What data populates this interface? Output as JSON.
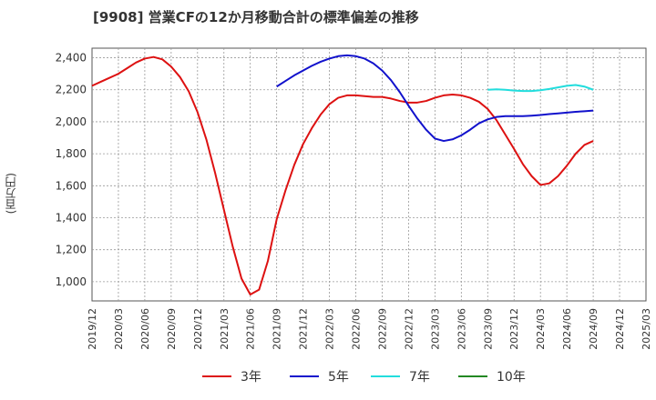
{
  "chart_data": {
    "type": "line",
    "title": "[9908]  営業CFの12か月移動合計の標準偏差の推移",
    "ylabel": "(百万円)",
    "xlabel": "",
    "ylim": [
      880,
      2460
    ],
    "y_ticks": [
      1000,
      1200,
      1400,
      1600,
      1800,
      2000,
      2200,
      2400
    ],
    "y_tick_labels": [
      "1,000",
      "1,200",
      "1,400",
      "1,600",
      "1,800",
      "2,000",
      "2,200",
      "2,400"
    ],
    "x_ticks": [
      "2019-12",
      "2020-03",
      "2020-06",
      "2020-09",
      "2020-12",
      "2021-03",
      "2021-06",
      "2021-09",
      "2021-12",
      "2022-03",
      "2022-06",
      "2022-09",
      "2022-12",
      "2023-03",
      "2023-06",
      "2023-09",
      "2023-12",
      "2024-03",
      "2024-06",
      "2024-09",
      "2024-12",
      "2025-03"
    ],
    "x_tick_labels": [
      "2019/12",
      "2020/03",
      "2020/06",
      "2020/09",
      "2020/12",
      "2021/03",
      "2021/06",
      "2021/09",
      "2021/12",
      "2022/03",
      "2022/06",
      "2022/09",
      "2022/12",
      "2023/03",
      "2023/06",
      "2023/09",
      "2023/12",
      "2024/03",
      "2024/06",
      "2024/09",
      "2024/12",
      "2025/03"
    ],
    "grid": true,
    "legend_position": "bottom",
    "series": [
      {
        "name": "3年",
        "color": "#dd1111",
        "x": [
          "2019-12",
          "2020-01",
          "2020-02",
          "2020-03",
          "2020-04",
          "2020-05",
          "2020-06",
          "2020-07",
          "2020-08",
          "2020-09",
          "2020-10",
          "2020-11",
          "2020-12",
          "2021-01",
          "2021-02",
          "2021-03",
          "2021-04",
          "2021-05",
          "2021-06",
          "2021-07",
          "2021-08",
          "2021-09",
          "2021-10",
          "2021-11",
          "2021-12",
          "2022-01",
          "2022-02",
          "2022-03",
          "2022-04",
          "2022-05",
          "2022-06",
          "2022-07",
          "2022-08",
          "2022-09",
          "2022-10",
          "2022-11",
          "2022-12",
          "2023-01",
          "2023-02",
          "2023-03",
          "2023-04",
          "2023-05",
          "2023-06",
          "2023-07",
          "2023-08",
          "2023-09",
          "2023-10",
          "2023-11",
          "2023-12",
          "2024-01",
          "2024-02",
          "2024-03",
          "2024-04",
          "2024-05",
          "2024-06",
          "2024-07",
          "2024-08",
          "2024-09"
        ],
        "values": [
          2225,
          2250,
          2275,
          2300,
          2335,
          2370,
          2395,
          2405,
          2390,
          2345,
          2280,
          2190,
          2060,
          1890,
          1680,
          1450,
          1220,
          1020,
          920,
          950,
          1130,
          1390,
          1570,
          1730,
          1860,
          1960,
          2045,
          2110,
          2150,
          2165,
          2165,
          2160,
          2155,
          2155,
          2145,
          2130,
          2120,
          2120,
          2130,
          2150,
          2165,
          2170,
          2165,
          2150,
          2125,
          2080,
          2010,
          1920,
          1830,
          1735,
          1660,
          1605,
          1615,
          1660,
          1725,
          1800,
          1855,
          1880
        ]
      },
      {
        "name": "5年",
        "color": "#1111cc",
        "x": [
          "2021-09",
          "2021-10",
          "2021-11",
          "2021-12",
          "2022-01",
          "2022-02",
          "2022-03",
          "2022-04",
          "2022-05",
          "2022-06",
          "2022-07",
          "2022-08",
          "2022-09",
          "2022-10",
          "2022-11",
          "2022-12",
          "2023-01",
          "2023-02",
          "2023-03",
          "2023-04",
          "2023-05",
          "2023-06",
          "2023-07",
          "2023-08",
          "2023-09",
          "2023-10",
          "2023-11",
          "2023-12",
          "2024-01",
          "2024-02",
          "2024-03",
          "2024-04",
          "2024-05",
          "2024-06",
          "2024-07",
          "2024-08",
          "2024-09"
        ],
        "values": [
          2220,
          2255,
          2290,
          2320,
          2350,
          2375,
          2395,
          2410,
          2415,
          2410,
          2395,
          2365,
          2320,
          2260,
          2185,
          2100,
          2020,
          1950,
          1895,
          1880,
          1890,
          1915,
          1950,
          1990,
          2015,
          2030,
          2035,
          2035,
          2035,
          2038,
          2042,
          2048,
          2052,
          2057,
          2062,
          2066,
          2070
        ]
      },
      {
        "name": "7年",
        "color": "#22dddd",
        "x": [
          "2023-09",
          "2023-10",
          "2023-11",
          "2023-12",
          "2024-01",
          "2024-02",
          "2024-03",
          "2024-04",
          "2024-05",
          "2024-06",
          "2024-07",
          "2024-08",
          "2024-09"
        ],
        "values": [
          2200,
          2203,
          2200,
          2195,
          2192,
          2192,
          2197,
          2205,
          2215,
          2225,
          2230,
          2220,
          2200
        ]
      },
      {
        "name": "10年",
        "color": "#228822",
        "x": [],
        "values": []
      }
    ]
  }
}
